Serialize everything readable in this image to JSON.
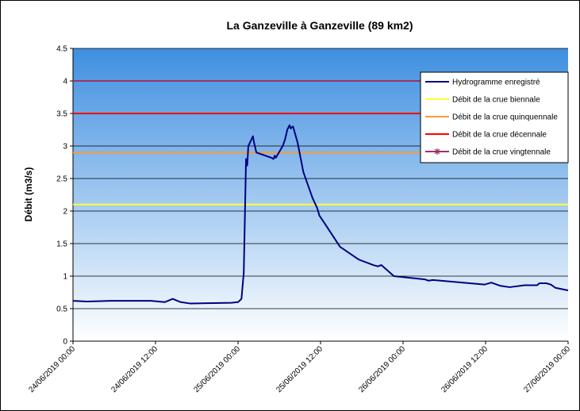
{
  "chart_data": {
    "type": "line",
    "title": "La Ganzeville à Ganzeville (89 km2)",
    "y_label": "Débit (m3/s)",
    "xlim": [
      "24/06/2019 00:00",
      "27/06/2019 00:00"
    ],
    "xticks": [
      "24/06/2019 00:00",
      "24/06/2019 12:00",
      "25/06/2019 00:00",
      "25/06/2019 12:00",
      "26/06/2019 00:00",
      "26/06/2019 12:00",
      "27/06/2019 00:00"
    ],
    "ylim": [
      0,
      4.5
    ],
    "yticks": [
      0,
      0.5,
      1,
      1.5,
      2,
      2.5,
      3,
      3.5,
      4,
      4.5
    ],
    "grid": true,
    "legend": "upper right",
    "series": [
      {
        "name": "Hydrogramme enregistré",
        "color": "#000080",
        "x": [
          "24/06/2019 00:00",
          "24/06/2019 02:00",
          "24/06/2019 05:30",
          "24/06/2019 11:20",
          "24/06/2019 13:20",
          "24/06/2019 14:30",
          "24/06/2019 15:40",
          "24/06/2019 17:00",
          "24/06/2019 23:00",
          "25/06/2019 00:00",
          "25/06/2019 00:30",
          "25/06/2019 00:50",
          "25/06/2019 01:10",
          "25/06/2019 01:20",
          "25/06/2019 01:30",
          "25/06/2019 02:10",
          "25/06/2019 02:20",
          "25/06/2019 02:40",
          "25/06/2019 04:50",
          "25/06/2019 05:10",
          "25/06/2019 05:20",
          "25/06/2019 05:30",
          "25/06/2019 06:30",
          "25/06/2019 06:50",
          "25/06/2019 07:10",
          "25/06/2019 07:30",
          "25/06/2019 07:40",
          "25/06/2019 08:00",
          "25/06/2019 08:40",
          "25/06/2019 09:30",
          "25/06/2019 10:50",
          "25/06/2019 11:30",
          "25/06/2019 11:50",
          "25/06/2019 12:40",
          "25/06/2019 14:50",
          "25/06/2019 17:20",
          "25/06/2019 17:40",
          "25/06/2019 19:40",
          "25/06/2019 20:20",
          "25/06/2019 20:50",
          "25/06/2019 22:40",
          "26/06/2019 03:10",
          "26/06/2019 03:40",
          "26/06/2019 04:20",
          "26/06/2019 11:50",
          "26/06/2019 12:50",
          "26/06/2019 14:10",
          "26/06/2019 15:30",
          "26/06/2019 17:40",
          "26/06/2019 19:30",
          "26/06/2019 19:50",
          "26/06/2019 20:50",
          "26/06/2019 21:30",
          "26/06/2019 22:10",
          "27/06/2019 00:00"
        ],
        "values": [
          0.62,
          0.61,
          0.62,
          0.62,
          0.6,
          0.65,
          0.6,
          0.58,
          0.59,
          0.6,
          0.65,
          1.05,
          2.8,
          2.7,
          3.0,
          3.15,
          3.05,
          2.9,
          2.82,
          2.8,
          2.85,
          2.82,
          3.0,
          3.1,
          3.25,
          3.32,
          3.27,
          3.3,
          3.05,
          2.6,
          2.2,
          2.05,
          1.93,
          1.8,
          1.45,
          1.27,
          1.25,
          1.17,
          1.15,
          1.17,
          1.0,
          0.95,
          0.93,
          0.94,
          0.87,
          0.9,
          0.85,
          0.83,
          0.86,
          0.86,
          0.89,
          0.89,
          0.87,
          0.82,
          0.78
        ]
      }
    ],
    "reference_lines": [
      {
        "name": "Débit de la crue biennale",
        "color": "#ffff33",
        "value": 2.1
      },
      {
        "name": "Débit de la crue quinquennale",
        "color": "#ff9933",
        "value": 2.9
      },
      {
        "name": "Débit de la crue décennale",
        "color": "#ff0000",
        "value": 3.5
      },
      {
        "name": "Débit de la crue vingtennale",
        "color": "#993366",
        "value": 4
      }
    ]
  }
}
